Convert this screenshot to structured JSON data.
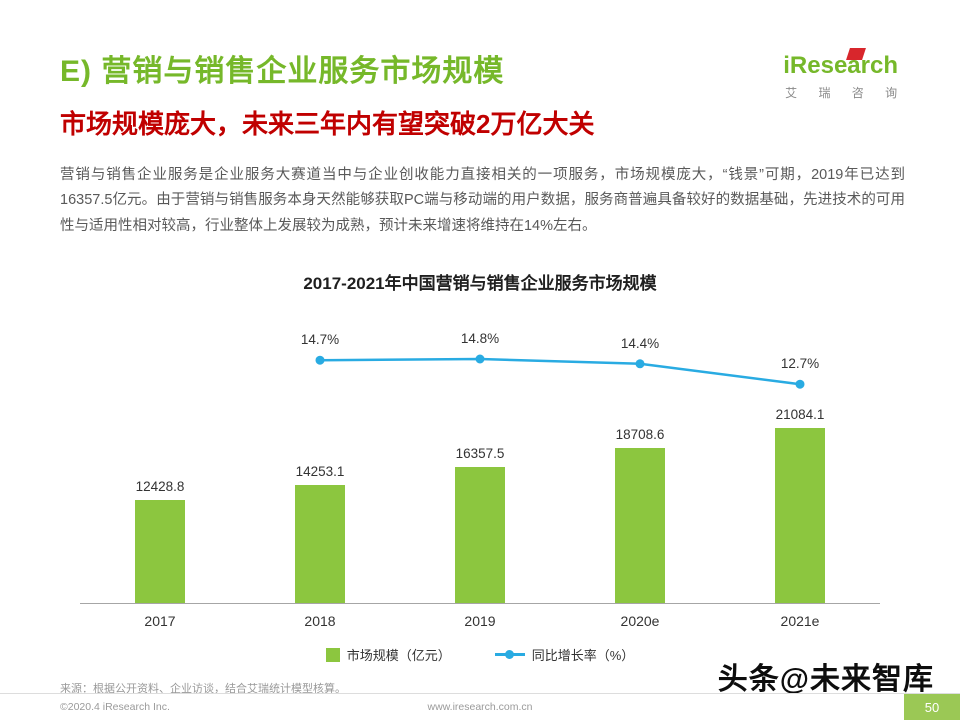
{
  "header": {
    "title": "E) 营销与销售企业服务市场规模",
    "subtitle": "市场规模庞大，未来三年内有望突破2万亿大关",
    "logo": {
      "brand": "iResearch",
      "caption": "艾 瑞 咨 询"
    }
  },
  "body": {
    "paragraph": "营销与销售企业服务是企业服务大赛道当中与企业创收能力直接相关的一项服务，市场规模庞大，“钱景”可期，2019年已达到16357.5亿元。由于营销与销售服务本身天然能够获取PC端与移动端的用户数据，服务商普遍具备较好的数据基础，先进技术的可用性与适用性相对较高，行业整体上发展较为成熟，预计未来增速将维持在14%左右。"
  },
  "chart_data": {
    "type": "bar",
    "title": "2017-2021年中国营销与销售企业服务市场规模",
    "categories": [
      "2017",
      "2018",
      "2019",
      "2020e",
      "2021e"
    ],
    "series": [
      {
        "name": "市场规模（亿元）",
        "type": "bar",
        "values": [
          12428.8,
          14253.1,
          16357.5,
          18708.6,
          21084.1
        ],
        "color": "#8CC63F"
      },
      {
        "name": "同比增长率（%）",
        "type": "line",
        "x": [
          "2018",
          "2019",
          "2020e",
          "2021e"
        ],
        "values": [
          14.7,
          14.8,
          14.4,
          12.7
        ],
        "color": "#29ABE2"
      }
    ],
    "ylim": [
      0,
      21084.1
    ],
    "grid": false,
    "legend_position": "bottom"
  },
  "source": {
    "text": "来源：根据公开资料、企业访谈，结合艾瑞统计模型核算。"
  },
  "watermark": {
    "text": "头条@未来智库"
  },
  "footer": {
    "copyright": "©2020.4 iResearch Inc.",
    "site": "www.iresearch.com.cn",
    "page_number": "50"
  },
  "colors": {
    "accent_green": "#76B82A",
    "bar_green": "#8CC63F",
    "line_cyan": "#29ABE2",
    "subtitle_red": "#C00000"
  }
}
